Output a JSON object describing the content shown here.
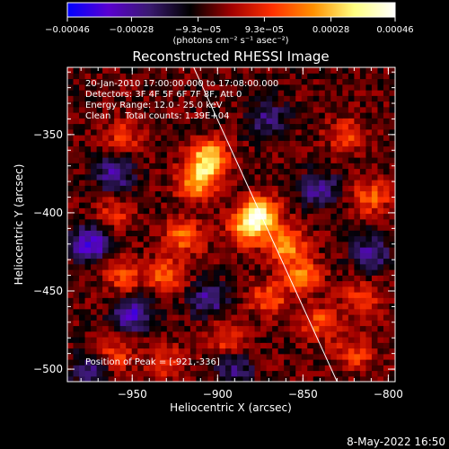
{
  "chart_data": {
    "type": "heatmap",
    "title": "Reconstructed RHESSI Image",
    "xlabel": "Heliocentric X (arcsec)",
    "ylabel": "Heliocentric Y (arcsec)",
    "xlim": [
      -988,
      -796
    ],
    "ylim": [
      -508,
      -307
    ],
    "x_ticks": [
      -950,
      -900,
      -850,
      -800
    ],
    "x_tick_labels": [
      "−950",
      "−900",
      "−850",
      "−800"
    ],
    "y_ticks": [
      -350,
      -400,
      -450,
      -500
    ],
    "y_tick_labels": [
      "−350",
      "−400",
      "−450",
      "−500"
    ],
    "colorbar": {
      "min": -0.00046,
      "max": 0.00046,
      "ticks": [
        -0.00046,
        -0.00028,
        -9.3e-05,
        9.3e-05,
        0.00028,
        0.00046
      ],
      "tick_labels": [
        "−0.00046",
        "−0.00028",
        "−9.3e−05",
        "9.3e−05",
        "0.00028",
        "0.00046"
      ],
      "units_label": "(photons cm⁻² s⁻¹ asec⁻²)",
      "colors": [
        "#0000ff",
        "#5a00d0",
        "#3a1a70",
        "#000000",
        "#a00000",
        "#ff3000",
        "#ff9000",
        "#ffff80",
        "#ffffff"
      ]
    },
    "info_lines": [
      "20-Jan-2010 17:00:00.000 to 17:08:00.000",
      "Detectors: 3F 4F 5F 6F 7F 8F, Att 0",
      "Energy Range: 12.0 - 25.0 keV",
      "Clean     Total counts: 1.39E+04"
    ],
    "peak_label": "Position of Peak = [-921,-336]",
    "peak_position": [
      -921,
      -336
    ],
    "limb_line": [
      [
        -914,
        -307
      ],
      [
        -830,
        -508
      ]
    ],
    "bright_features": [
      {
        "x": -905,
        "y": -365,
        "v": 1.0
      },
      {
        "x": -912,
        "y": -380,
        "v": 0.85
      },
      {
        "x": -875,
        "y": -400,
        "v": 0.95
      },
      {
        "x": -882,
        "y": -410,
        "v": 0.8
      },
      {
        "x": -860,
        "y": -420,
        "v": 0.8
      },
      {
        "x": -850,
        "y": -440,
        "v": 0.65
      },
      {
        "x": -920,
        "y": -415,
        "v": 0.6
      },
      {
        "x": -930,
        "y": -440,
        "v": 0.55
      },
      {
        "x": -955,
        "y": -440,
        "v": 0.5
      },
      {
        "x": -870,
        "y": -455,
        "v": 0.55
      },
      {
        "x": -840,
        "y": -470,
        "v": 0.5
      },
      {
        "x": -810,
        "y": -390,
        "v": 0.55
      },
      {
        "x": -825,
        "y": -350,
        "v": 0.45
      },
      {
        "x": -815,
        "y": -455,
        "v": 0.45
      },
      {
        "x": -820,
        "y": -490,
        "v": 0.45
      },
      {
        "x": -960,
        "y": -490,
        "v": 0.45
      },
      {
        "x": -930,
        "y": -495,
        "v": 0.4
      },
      {
        "x": -895,
        "y": -480,
        "v": 0.45
      },
      {
        "x": -960,
        "y": -400,
        "v": 0.35
      },
      {
        "x": -955,
        "y": -350,
        "v": 0.4
      }
    ],
    "dark_features": [
      {
        "x": -975,
        "y": -420,
        "v": -0.8
      },
      {
        "x": -960,
        "y": -375,
        "v": -0.6
      },
      {
        "x": -950,
        "y": -465,
        "v": -0.7
      },
      {
        "x": -905,
        "y": -455,
        "v": -0.55
      },
      {
        "x": -870,
        "y": -340,
        "v": -0.5
      },
      {
        "x": -840,
        "y": -385,
        "v": -0.6
      },
      {
        "x": -810,
        "y": -425,
        "v": -0.55
      },
      {
        "x": -975,
        "y": -500,
        "v": -0.5
      },
      {
        "x": -890,
        "y": -500,
        "v": -0.45
      }
    ]
  },
  "timestamp": "8-May-2022 16:50"
}
